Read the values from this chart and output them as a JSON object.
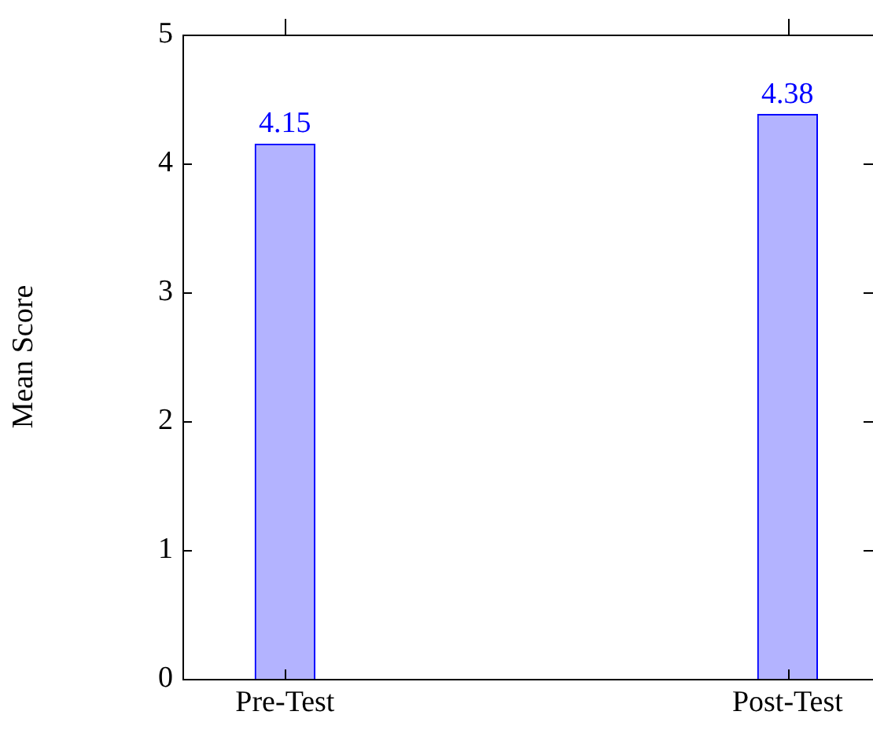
{
  "chart_data": {
    "type": "bar",
    "ylabel": "Mean Score",
    "categories": [
      "Pre-Test",
      "Post-Test"
    ],
    "values": [
      4.15,
      4.38
    ],
    "color": "#b3b3ff",
    "ylim": [
      0,
      5
    ],
    "yticks": [
      0,
      1,
      2,
      3,
      4,
      5
    ],
    "grid": false,
    "data_labels": true
  }
}
